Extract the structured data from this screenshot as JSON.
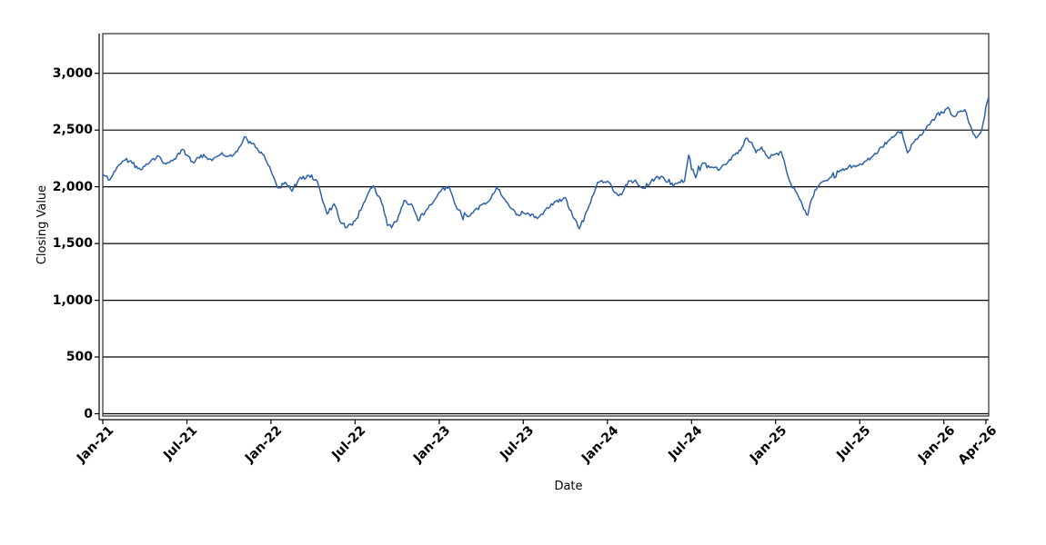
{
  "chart_data": {
    "type": "line",
    "title": "",
    "xlabel": "Date",
    "ylabel": "Closing Value",
    "legend": "none",
    "grid": "horizontal-solid-black",
    "background_color": "#ffffff",
    "plot_border_color": "#3c3c3c",
    "grid_color": "#000000",
    "axis_line_color": "#000000",
    "tick_label_color": "#000000",
    "x_unit": "months since Jan-2021 (fractional = intra-month date)",
    "xlim_months": [
      0,
      63.2
    ],
    "ylim": [
      -20,
      3350
    ],
    "y_ticks": [
      {
        "label": "0",
        "value": 0
      },
      {
        "label": "500",
        "value": 500
      },
      {
        "label": "1,000",
        "value": 1000
      },
      {
        "label": "1,500",
        "value": 1500
      },
      {
        "label": "2,000",
        "value": 2000
      },
      {
        "label": "2,500",
        "value": 2500
      },
      {
        "label": "3,000",
        "value": 3000
      }
    ],
    "x_ticks": [
      {
        "label": "Jan-21",
        "month": 0
      },
      {
        "label": "Jul-21",
        "month": 6
      },
      {
        "label": "Jan-22",
        "month": 12
      },
      {
        "label": "Jul-22",
        "month": 18
      },
      {
        "label": "Jan-23",
        "month": 24
      },
      {
        "label": "Jul-23",
        "month": 30
      },
      {
        "label": "Jan-24",
        "month": 36
      },
      {
        "label": "Jul-24",
        "month": 42
      },
      {
        "label": "Jan-25",
        "month": 48
      },
      {
        "label": "Jul-25",
        "month": 54
      },
      {
        "label": "Jan-26",
        "month": 60
      },
      {
        "label": "Apr-26",
        "month": 63
      }
    ],
    "series": [
      {
        "name": "Closing Value",
        "color": "#2e62a8",
        "stroke_width": 1.5,
        "style": "noisy daily time series; anchor points below read from chart at ~half-month resolution",
        "x_months": [
          0,
          0.5,
          1,
          1.5,
          2,
          2.5,
          3,
          3.5,
          4,
          4.5,
          5,
          5.7,
          6,
          6.5,
          7,
          7.5,
          8,
          8.5,
          9,
          9.6,
          10.1,
          10.6,
          11,
          11.5,
          12,
          12.5,
          13,
          13.5,
          14,
          14.7,
          15.3,
          16,
          16.5,
          17,
          17.4,
          18,
          18.5,
          19,
          19.3,
          20,
          20.3,
          21,
          21.5,
          22,
          22.5,
          23,
          23.5,
          24,
          24.7,
          25.3,
          26,
          26.5,
          27,
          27.6,
          28.1,
          28.6,
          29,
          29.7,
          30.3,
          31,
          31.6,
          32.3,
          33,
          33.5,
          34,
          34.6,
          35.3,
          36,
          36.5,
          37,
          37.5,
          38,
          38.5,
          39,
          39.5,
          40,
          40.5,
          41,
          41.5,
          41.8,
          42.3,
          42.8,
          43.3,
          44,
          44.5,
          45,
          45.5,
          45.9,
          46.3,
          46.6,
          47,
          47.5,
          48,
          48.4,
          49,
          49.5,
          50,
          50.3,
          50.6,
          51,
          51.5,
          52,
          52.5,
          53,
          53.5,
          54,
          54.5,
          55,
          55.5,
          56,
          56.5,
          57,
          57.4,
          58,
          58.5,
          59,
          59.5,
          60,
          60.3,
          60.7,
          61,
          61.5,
          62,
          62.3,
          62.7,
          63.2
        ],
        "values": [
          2110,
          2060,
          2170,
          2230,
          2230,
          2160,
          2180,
          2240,
          2270,
          2200,
          2230,
          2330,
          2280,
          2210,
          2280,
          2240,
          2260,
          2300,
          2270,
          2310,
          2440,
          2380,
          2340,
          2280,
          2140,
          1990,
          2040,
          1960,
          2070,
          2100,
          2050,
          1760,
          1850,
          1680,
          1640,
          1700,
          1820,
          1960,
          2010,
          1830,
          1660,
          1700,
          1880,
          1850,
          1700,
          1780,
          1850,
          1950,
          2005,
          1800,
          1740,
          1790,
          1840,
          1880,
          2000,
          1900,
          1830,
          1745,
          1770,
          1720,
          1800,
          1870,
          1905,
          1750,
          1630,
          1800,
          2040,
          2050,
          1950,
          1930,
          2050,
          2060,
          1990,
          2020,
          2090,
          2080,
          2020,
          2030,
          2050,
          2280,
          2080,
          2210,
          2170,
          2150,
          2200,
          2280,
          2320,
          2430,
          2390,
          2300,
          2350,
          2250,
          2290,
          2310,
          2050,
          1950,
          1800,
          1750,
          1900,
          2000,
          2050,
          2090,
          2130,
          2160,
          2180,
          2200,
          2230,
          2280,
          2350,
          2400,
          2450,
          2490,
          2300,
          2420,
          2470,
          2550,
          2640,
          2650,
          2700,
          2620,
          2660,
          2680,
          2500,
          2430,
          2500,
          2790
        ]
      }
    ]
  }
}
